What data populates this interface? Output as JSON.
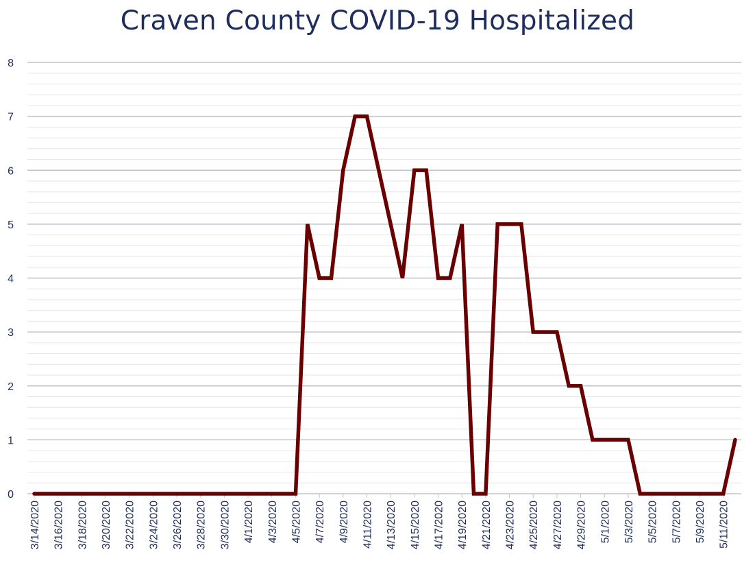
{
  "chart_data": {
    "type": "line",
    "title": "Craven County COVID-19 Hospitalized",
    "xlabel": "",
    "ylabel": "",
    "ylim": [
      0,
      8
    ],
    "yticks": [
      0,
      1,
      2,
      3,
      4,
      5,
      6,
      7,
      8
    ],
    "grid": true,
    "legend": "none",
    "x": [
      "3/14/2020",
      "3/15/2020",
      "3/16/2020",
      "3/17/2020",
      "3/18/2020",
      "3/19/2020",
      "3/20/2020",
      "3/21/2020",
      "3/22/2020",
      "3/23/2020",
      "3/24/2020",
      "3/25/2020",
      "3/26/2020",
      "3/27/2020",
      "3/28/2020",
      "3/29/2020",
      "3/30/2020",
      "3/31/2020",
      "4/1/2020",
      "4/2/2020",
      "4/3/2020",
      "4/4/2020",
      "4/5/2020",
      "4/6/2020",
      "4/7/2020",
      "4/8/2020",
      "4/9/2020",
      "4/10/2020",
      "4/11/2020",
      "4/12/2020",
      "4/13/2020",
      "4/14/2020",
      "4/15/2020",
      "4/16/2020",
      "4/17/2020",
      "4/18/2020",
      "4/19/2020",
      "4/20/2020",
      "4/21/2020",
      "4/22/2020",
      "4/23/2020",
      "4/24/2020",
      "4/25/2020",
      "4/26/2020",
      "4/27/2020",
      "4/28/2020",
      "4/29/2020",
      "4/30/2020",
      "5/1/2020",
      "5/2/2020",
      "5/3/2020",
      "5/4/2020",
      "5/5/2020",
      "5/6/2020",
      "5/7/2020",
      "5/8/2020",
      "5/9/2020",
      "5/10/2020",
      "5/11/2020",
      "5/12/2020"
    ],
    "xtick_labels": [
      "3/14/2020",
      "3/16/2020",
      "3/18/2020",
      "3/20/2020",
      "3/22/2020",
      "3/24/2020",
      "3/26/2020",
      "3/28/2020",
      "3/30/2020",
      "4/1/2020",
      "4/3/2020",
      "4/5/2020",
      "4/7/2020",
      "4/9/2020",
      "4/11/2020",
      "4/13/2020",
      "4/15/2020",
      "4/17/2020",
      "4/19/2020",
      "4/21/2020",
      "4/23/2020",
      "4/25/2020",
      "4/27/2020",
      "4/29/2020",
      "5/1/2020",
      "5/3/2020",
      "5/5/2020",
      "5/7/2020",
      "5/9/2020",
      "5/11/2020"
    ],
    "series": [
      {
        "color": "#6b0000",
        "values": [
          0,
          0,
          0,
          0,
          0,
          0,
          0,
          0,
          0,
          0,
          0,
          0,
          0,
          0,
          0,
          0,
          0,
          0,
          0,
          0,
          0,
          0,
          0,
          5,
          4,
          4,
          6,
          7,
          7,
          6,
          5,
          4,
          6,
          6,
          4,
          4,
          5,
          0,
          0,
          5,
          5,
          5,
          3,
          3,
          3,
          2,
          2,
          1,
          1,
          1,
          1,
          0,
          0,
          0,
          0,
          0,
          0,
          0,
          0,
          1
        ]
      }
    ]
  }
}
